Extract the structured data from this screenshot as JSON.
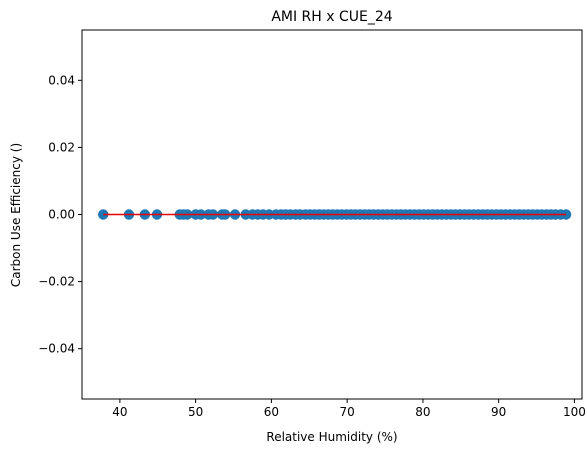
{
  "chart_data": {
    "type": "scatter",
    "title": "AMI RH x CUE_24",
    "xlabel": "Relative Humidity (%)",
    "ylabel": "Carbon Use Efficiency ()",
    "xlim": [
      35,
      101
    ],
    "ylim": [
      -0.055,
      0.055
    ],
    "xticks": [
      40,
      50,
      60,
      70,
      80,
      90,
      100
    ],
    "xtick_labels": [
      "40",
      "50",
      "60",
      "70",
      "80",
      "90",
      "100"
    ],
    "yticks": [
      0.04,
      0.02,
      0.0,
      -0.02,
      -0.04
    ],
    "ytick_labels": [
      "0.04",
      "0.02",
      "0.00",
      "−0.02",
      "−0.04"
    ],
    "grid": false,
    "colors": {
      "points": "#1f77b4",
      "fit_line": "#e60000",
      "axes": "#000000"
    },
    "series": [
      {
        "kind": "scatter",
        "x": [
          37.8,
          41.2,
          43.3,
          44.9,
          47.9,
          48.4,
          48.9,
          50.0,
          50.7,
          51.7,
          52.3,
          53.5,
          53.9,
          55.2,
          56.6,
          57.5,
          58.2,
          58.9,
          59.7,
          60.6,
          61.3,
          61.9,
          62.5,
          63.2,
          63.8,
          64.5,
          65.1,
          65.7,
          66.3,
          66.9,
          67.5,
          68.1,
          68.7,
          69.3,
          69.9,
          70.5,
          71.1,
          71.7,
          72.3,
          72.9,
          73.5,
          74.1,
          74.7,
          75.3,
          75.9,
          76.5,
          77.1,
          77.7,
          78.3,
          78.9,
          79.5,
          80.1,
          80.7,
          81.3,
          81.9,
          82.5,
          83.1,
          83.7,
          84.3,
          84.9,
          85.5,
          86.1,
          86.7,
          87.3,
          87.9,
          88.5,
          89.1,
          89.7,
          90.3,
          90.9,
          91.5,
          92.1,
          92.7,
          93.3,
          93.9,
          94.5,
          95.1,
          95.7,
          96.3,
          96.9,
          97.5,
          98.2,
          98.9
        ],
        "y": 0.0
      },
      {
        "kind": "line",
        "x": [
          37.8,
          98.9
        ],
        "y": [
          0.0,
          0.0
        ]
      }
    ]
  }
}
